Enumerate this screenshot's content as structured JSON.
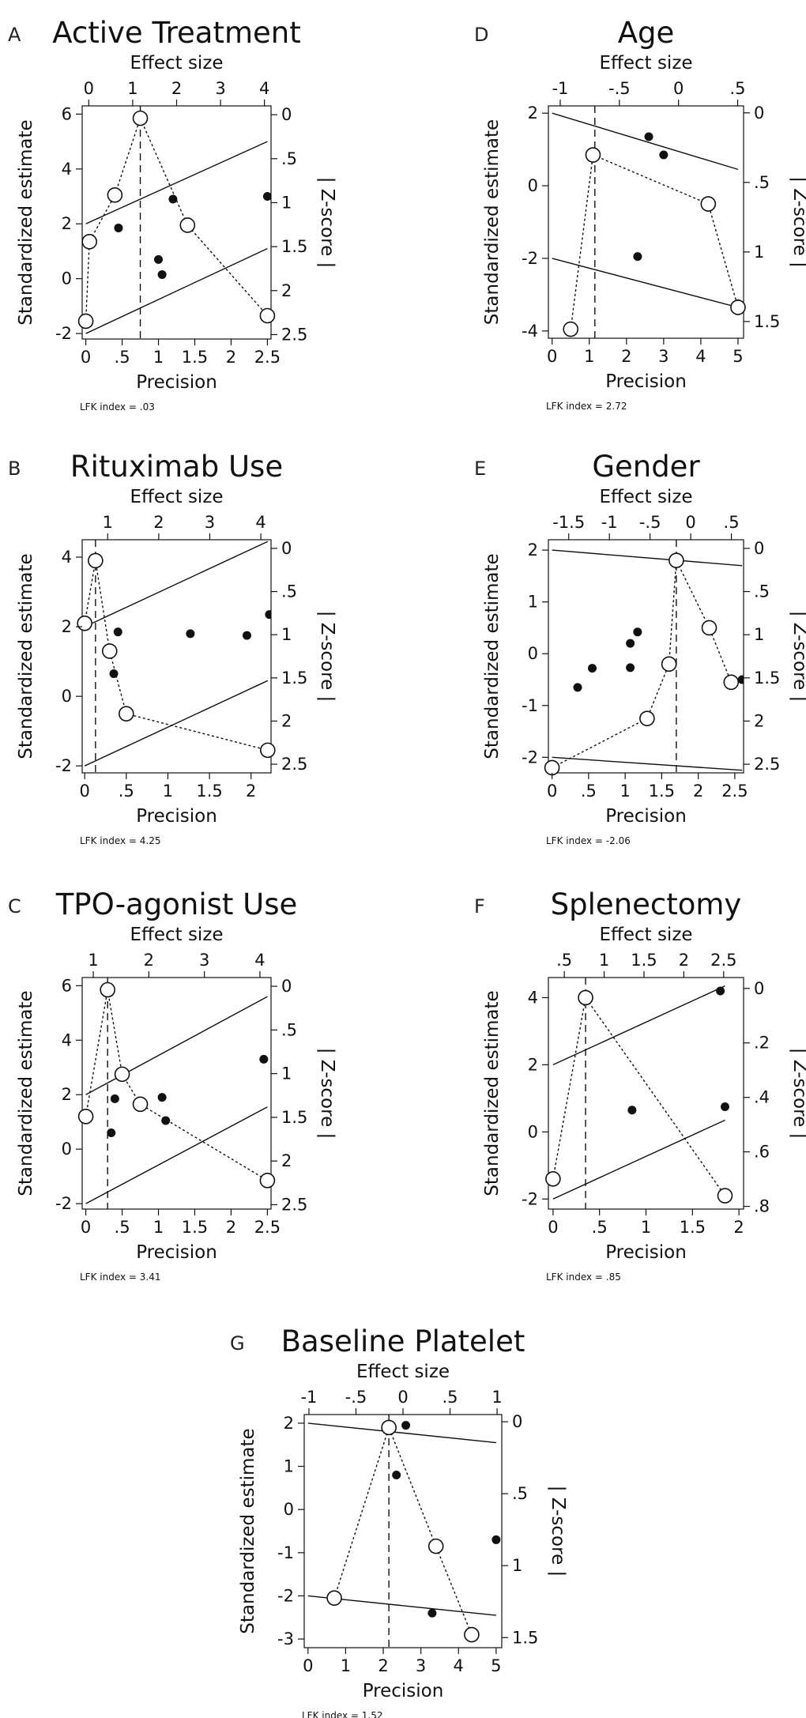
{
  "chart_data": [
    {
      "panel": "A",
      "title": "Active Treatment",
      "type": "scatter",
      "xlabel": "Precision",
      "ylabel": "Standardized estimate",
      "top_label": "Effect size",
      "right_label": "| Z-score |",
      "x_ticks": [
        0,
        0.5,
        1,
        1.5,
        2,
        2.5
      ],
      "x_tick_labels": [
        "0",
        ".5",
        "1",
        "1.5",
        "2",
        "2.5"
      ],
      "y_ticks": [
        -2,
        0,
        2,
        4,
        6
      ],
      "y_tick_labels": [
        "-2",
        "0",
        "2",
        "4",
        "6"
      ],
      "top_ticks": [
        0,
        1,
        2,
        3,
        4
      ],
      "top_tick_labels": [
        "0",
        "1",
        "2",
        "3",
        "4"
      ],
      "right_ticks": [
        0,
        0.5,
        1,
        1.5,
        2,
        2.5
      ],
      "right_tick_labels": [
        "0",
        ".5",
        "1",
        "1.5",
        "2",
        "2.5"
      ],
      "xlim": [
        -0.05,
        2.55
      ],
      "ylim": [
        -2.2,
        6.3
      ],
      "top_range": [
        -0.15,
        4.15
      ],
      "right_range": [
        -0.1,
        2.55
      ],
      "points": [
        [
          0.45,
          1.85
        ],
        [
          1.2,
          2.9
        ],
        [
          1.0,
          0.7
        ],
        [
          1.05,
          0.15
        ],
        [
          2.5,
          3.0
        ]
      ],
      "doi_points": [
        [
          0.0,
          -1.55
        ],
        [
          0.05,
          1.35
        ],
        [
          0.4,
          3.05
        ],
        [
          0.75,
          5.85
        ],
        [
          1.4,
          1.95
        ],
        [
          2.5,
          -1.35
        ]
      ],
      "egger_lines": [
        [
          [
            0.0,
            2.0
          ],
          [
            2.5,
            5.0
          ]
        ],
        [
          [
            0.0,
            -2.0
          ],
          [
            2.5,
            1.1
          ]
        ]
      ],
      "vline_x": 0.75,
      "lfk": "LFK index = .03"
    },
    {
      "panel": "B",
      "title": "Rituximab Use",
      "type": "scatter",
      "xlabel": "Precision",
      "ylabel": "Standardized estimate",
      "top_label": "Effect size",
      "right_label": "| Z-score |",
      "x_ticks": [
        0,
        0.5,
        1,
        1.5,
        2
      ],
      "x_tick_labels": [
        "0",
        ".5",
        "1",
        "1.5",
        "2"
      ],
      "y_ticks": [
        -2,
        0,
        2,
        4
      ],
      "y_tick_labels": [
        "-2",
        "0",
        "2",
        "4"
      ],
      "top_ticks": [
        1,
        2,
        3,
        4
      ],
      "top_tick_labels": [
        "1",
        "2",
        "3",
        "4"
      ],
      "right_ticks": [
        0,
        0.5,
        1,
        1.5,
        2,
        2.5
      ],
      "right_tick_labels": [
        "0",
        ".5",
        "1",
        "1.5",
        "2",
        "2.5"
      ],
      "xlim": [
        -0.03,
        2.24
      ],
      "ylim": [
        -2.2,
        4.5
      ],
      "top_range": [
        0.5,
        4.2
      ],
      "right_range": [
        -0.1,
        2.6
      ],
      "points": [
        [
          0.4,
          1.85
        ],
        [
          0.35,
          0.65
        ],
        [
          1.27,
          1.8
        ],
        [
          1.95,
          1.75
        ],
        [
          2.22,
          2.35
        ]
      ],
      "doi_points": [
        [
          0.0,
          2.1
        ],
        [
          0.13,
          3.9
        ],
        [
          0.3,
          1.3
        ],
        [
          0.5,
          -0.5
        ],
        [
          2.2,
          -1.55
        ]
      ],
      "egger_lines": [
        [
          [
            0.0,
            2.0
          ],
          [
            2.2,
            4.45
          ]
        ],
        [
          [
            0.0,
            -2.0
          ],
          [
            2.2,
            0.45
          ]
        ]
      ],
      "vline_x": 0.13,
      "lfk": "LFK index = 4.25"
    },
    {
      "panel": "C",
      "title": "TPO-agonist Use",
      "type": "scatter",
      "xlabel": "Precision",
      "ylabel": "Standardized estimate",
      "top_label": "Effect size",
      "right_label": "| Z-score |",
      "x_ticks": [
        0,
        0.5,
        1,
        1.5,
        2,
        2.5
      ],
      "x_tick_labels": [
        "0",
        ".5",
        "1",
        "1.5",
        "2",
        "2.5"
      ],
      "y_ticks": [
        -2,
        0,
        2,
        4,
        6
      ],
      "y_tick_labels": [
        "-2",
        "0",
        "2",
        "4",
        "6"
      ],
      "top_ticks": [
        1,
        2,
        3,
        4
      ],
      "top_tick_labels": [
        "1",
        "2",
        "3",
        "4"
      ],
      "right_ticks": [
        0,
        0.5,
        1,
        1.5,
        2,
        2.5
      ],
      "right_tick_labels": [
        "0",
        ".5",
        "1",
        "1.5",
        "2",
        "2.5"
      ],
      "xlim": [
        -0.05,
        2.55
      ],
      "ylim": [
        -2.2,
        6.3
      ],
      "top_range": [
        0.8,
        4.2
      ],
      "right_range": [
        -0.1,
        2.55
      ],
      "points": [
        [
          0.4,
          1.85
        ],
        [
          0.35,
          0.6
        ],
        [
          1.05,
          1.9
        ],
        [
          1.1,
          1.05
        ],
        [
          2.45,
          3.3
        ]
      ],
      "doi_points": [
        [
          0.0,
          1.2
        ],
        [
          0.3,
          5.85
        ],
        [
          0.5,
          2.75
        ],
        [
          0.75,
          1.65
        ],
        [
          2.5,
          -1.15
        ]
      ],
      "egger_lines": [
        [
          [
            0.0,
            2.0
          ],
          [
            2.5,
            5.6
          ]
        ],
        [
          [
            0.0,
            -2.0
          ],
          [
            2.5,
            1.55
          ]
        ]
      ],
      "vline_x": 0.3,
      "lfk": "LFK index = 3.41"
    },
    {
      "panel": "D",
      "title": "Age",
      "type": "scatter",
      "xlabel": "Precision",
      "ylabel": "Standardized estimate",
      "top_label": "Effect size",
      "right_label": "| Z-score |",
      "x_ticks": [
        0,
        1,
        2,
        3,
        4,
        5
      ],
      "x_tick_labels": [
        "0",
        "1",
        "2",
        "3",
        "4",
        "5"
      ],
      "y_ticks": [
        -4,
        -2,
        0,
        2
      ],
      "y_tick_labels": [
        "-4",
        "-2",
        "0",
        "2"
      ],
      "top_ticks": [
        -1,
        -0.5,
        0,
        0.5
      ],
      "top_tick_labels": [
        "-1",
        "-.5",
        "0",
        ".5"
      ],
      "right_ticks": [
        0,
        0.5,
        1,
        1.5
      ],
      "right_tick_labels": [
        "0",
        ".5",
        "1",
        "1.5"
      ],
      "xlim": [
        -0.1,
        5.15
      ],
      "ylim": [
        -4.2,
        2.2
      ],
      "top_range": [
        -1.1,
        0.55
      ],
      "right_range": [
        -0.05,
        1.62
      ],
      "points": [
        [
          2.6,
          1.35
        ],
        [
          3.0,
          0.85
        ],
        [
          2.3,
          -1.95
        ],
        [
          5.0,
          -3.25
        ]
      ],
      "doi_points": [
        [
          0.5,
          -3.95
        ],
        [
          1.1,
          0.85
        ],
        [
          4.2,
          -0.5
        ],
        [
          5.0,
          -3.35
        ]
      ],
      "egger_lines": [
        [
          [
            0.0,
            2.0
          ],
          [
            5.0,
            0.45
          ]
        ],
        [
          [
            0.0,
            -2.0
          ],
          [
            5.0,
            -3.35
          ]
        ]
      ],
      "vline_x": 1.15,
      "lfk": "LFK index = 2.72"
    },
    {
      "panel": "E",
      "title": "Gender",
      "type": "scatter",
      "xlabel": "Precision",
      "ylabel": "Standardized estimate",
      "top_label": "Effect size",
      "right_label": "| Z-score |",
      "x_ticks": [
        0,
        0.5,
        1,
        1.5,
        2,
        2.5
      ],
      "x_tick_labels": [
        "0",
        ".5",
        "1",
        "1.5",
        "2",
        "2.5"
      ],
      "y_ticks": [
        -2,
        -1,
        0,
        1,
        2
      ],
      "y_tick_labels": [
        "-2",
        "-1",
        "0",
        "1",
        "2"
      ],
      "top_ticks": [
        -1.5,
        -1,
        -0.5,
        0,
        0.5
      ],
      "top_tick_labels": [
        "-1.5",
        "-1",
        "-.5",
        "0",
        ".5"
      ],
      "right_ticks": [
        0,
        0.5,
        1,
        1.5,
        2,
        2.5
      ],
      "right_tick_labels": [
        "0",
        ".5",
        "1",
        "1.5",
        "2",
        "2.5"
      ],
      "xlim": [
        -0.05,
        2.62
      ],
      "ylim": [
        -2.3,
        2.2
      ],
      "top_range": [
        -1.75,
        0.65
      ],
      "right_range": [
        -0.1,
        2.6
      ],
      "points": [
        [
          0.35,
          -0.65
        ],
        [
          0.55,
          -0.28
        ],
        [
          1.07,
          0.2
        ],
        [
          1.17,
          0.42
        ],
        [
          1.07,
          -0.27
        ],
        [
          2.6,
          -0.5
        ]
      ],
      "doi_points": [
        [
          0.0,
          -2.2
        ],
        [
          1.3,
          -1.25
        ],
        [
          1.6,
          -0.2
        ],
        [
          1.7,
          1.8
        ],
        [
          2.15,
          0.5
        ],
        [
          2.45,
          -0.55
        ]
      ],
      "egger_lines": [
        [
          [
            0.0,
            2.0
          ],
          [
            2.6,
            1.7
          ]
        ],
        [
          [
            0.0,
            -2.0
          ],
          [
            2.6,
            -2.25
          ]
        ]
      ],
      "vline_x": 1.7,
      "lfk": "LFK index = -2.06"
    },
    {
      "panel": "F",
      "title": "Splenectomy",
      "type": "scatter",
      "xlabel": "Precision",
      "ylabel": "Standardized estimate",
      "top_label": "Effect size",
      "right_label": "| Z-score |",
      "x_ticks": [
        0,
        0.5,
        1,
        1.5,
        2
      ],
      "x_tick_labels": [
        "0",
        ".5",
        "1",
        "1.5",
        "2"
      ],
      "y_ticks": [
        -2,
        0,
        2,
        4
      ],
      "y_tick_labels": [
        "-2",
        "0",
        "2",
        "4"
      ],
      "top_ticks": [
        0.5,
        1,
        1.5,
        2,
        2.5
      ],
      "top_tick_labels": [
        ".5",
        "1",
        "1.5",
        "2",
        "2.5"
      ],
      "right_ticks": [
        0,
        0.2,
        0.4,
        0.6,
        0.8
      ],
      "right_tick_labels": [
        "0",
        ".2",
        ".4",
        ".6",
        ".8"
      ],
      "xlim": [
        -0.05,
        2.05
      ],
      "ylim": [
        -2.3,
        4.6
      ],
      "top_range": [
        0.3,
        2.75
      ],
      "right_range": [
        -0.04,
        0.81
      ],
      "points": [
        [
          0.85,
          0.65
        ],
        [
          1.8,
          4.2
        ],
        [
          1.85,
          0.75
        ]
      ],
      "doi_points": [
        [
          0.0,
          -1.4
        ],
        [
          0.35,
          4.0
        ],
        [
          1.85,
          -1.9
        ]
      ],
      "egger_lines": [
        [
          [
            0.0,
            2.0
          ],
          [
            1.85,
            4.35
          ]
        ],
        [
          [
            0.0,
            -2.0
          ],
          [
            1.85,
            0.35
          ]
        ]
      ],
      "vline_x": 0.35,
      "lfk": "LFK index = .85"
    },
    {
      "panel": "G",
      "title": "Baseline Platelet",
      "type": "scatter",
      "xlabel": "Precision",
      "ylabel": "Standardized estimate",
      "top_label": "Effect size",
      "right_label": "| Z-score |",
      "x_ticks": [
        0,
        1,
        2,
        3,
        4,
        5
      ],
      "x_tick_labels": [
        "0",
        "1",
        "2",
        "3",
        "4",
        "5"
      ],
      "y_ticks": [
        -3,
        -2,
        -1,
        0,
        1,
        2
      ],
      "y_tick_labels": [
        "-3",
        "-2",
        "-1",
        "0",
        "1",
        "2"
      ],
      "top_ticks": [
        -1,
        -0.5,
        0,
        0.5,
        1
      ],
      "top_tick_labels": [
        "-1",
        "-.5",
        "0",
        ".5",
        "1"
      ],
      "right_ticks": [
        0,
        0.5,
        1,
        1.5
      ],
      "right_tick_labels": [
        "0",
        ".5",
        "1",
        "1.5"
      ],
      "xlim": [
        -0.1,
        5.15
      ],
      "ylim": [
        -3.2,
        2.2
      ],
      "top_range": [
        -1.05,
        1.05
      ],
      "right_range": [
        -0.05,
        1.57
      ],
      "points": [
        [
          2.6,
          1.95
        ],
        [
          2.35,
          0.8
        ],
        [
          3.3,
          -2.4
        ],
        [
          5.0,
          -0.7
        ]
      ],
      "doi_points": [
        [
          0.7,
          -2.05
        ],
        [
          2.15,
          1.9
        ],
        [
          3.4,
          -0.85
        ],
        [
          4.35,
          -2.9
        ]
      ],
      "egger_lines": [
        [
          [
            0.0,
            2.0
          ],
          [
            5.0,
            1.55
          ]
        ],
        [
          [
            0.0,
            -2.0
          ],
          [
            5.0,
            -2.45
          ]
        ]
      ],
      "vline_x": 2.15,
      "lfk": "LFK index = 1.52"
    }
  ]
}
